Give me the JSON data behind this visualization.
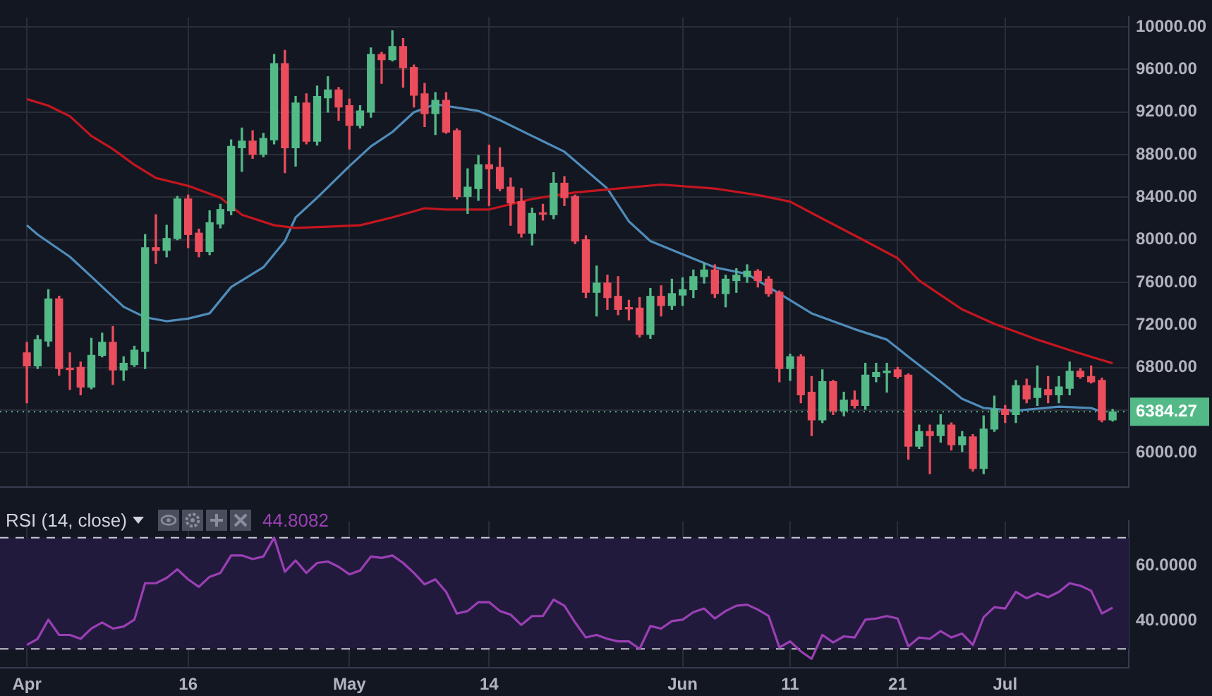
{
  "chart_data": [
    {
      "type": "candlestick",
      "x": [
        "--04-01",
        "--04-02",
        "--04-03",
        "--04-04",
        "--04-05",
        "--04-06",
        "--04-07",
        "--04-08",
        "--04-09",
        "--04-10",
        "--04-11",
        "--04-12",
        "--04-13",
        "--04-14",
        "--04-15",
        "--04-16",
        "--04-17",
        "--04-18",
        "--04-19",
        "--04-20",
        "--04-21",
        "--04-22",
        "--04-23",
        "--04-24",
        "--04-25",
        "--04-26",
        "--04-27",
        "--04-28",
        "--04-29",
        "--04-30",
        "--05-01",
        "--05-02",
        "--05-03",
        "--05-04",
        "--05-05",
        "--05-06",
        "--05-07",
        "--05-08",
        "--05-09",
        "--05-10",
        "--05-11",
        "--05-12",
        "--05-13",
        "--05-14",
        "--05-15",
        "--05-16",
        "--05-17",
        "--05-18",
        "--05-19",
        "--05-20",
        "--05-21",
        "--05-22",
        "--05-23",
        "--05-24",
        "--05-25",
        "--05-26",
        "--05-27",
        "--05-28",
        "--05-29",
        "--05-30",
        "--05-31",
        "--06-01",
        "--06-02",
        "--06-03",
        "--06-04",
        "--06-05",
        "--06-06",
        "--06-07",
        "--06-08",
        "--06-09",
        "--06-10",
        "--06-11",
        "--06-12",
        "--06-13",
        "--06-14",
        "--06-15",
        "--06-16",
        "--06-17",
        "--06-18",
        "--06-19",
        "--06-20",
        "--06-21",
        "--06-22",
        "--06-23",
        "--06-24",
        "--06-25",
        "--06-26",
        "--06-27",
        "--06-28",
        "--06-29",
        "--06-30",
        "--07-01",
        "--07-02",
        "--07-03",
        "--07-04",
        "--07-05",
        "--07-06",
        "--07-07",
        "--07-08",
        "--07-09",
        "--07-10",
        "--07-11"
      ],
      "ohlc": [
        [
          6938,
          7037,
          6469,
          6815
        ],
        [
          6815,
          7100,
          6790,
          7062
        ],
        [
          7049,
          7531,
          7000,
          7444
        ],
        [
          7444,
          7470,
          6728,
          6790
        ],
        [
          6790,
          6938,
          6593,
          6780
        ],
        [
          6802,
          6852,
          6543,
          6617
        ],
        [
          6617,
          7074,
          6600,
          6914
        ],
        [
          6914,
          7123,
          6900,
          7037
        ],
        [
          7037,
          7185,
          6642,
          6778
        ],
        [
          6778,
          6901,
          6679,
          6840
        ],
        [
          6827,
          7000,
          6810,
          6963
        ],
        [
          6951,
          8049,
          6790,
          7926
        ],
        [
          7926,
          8235,
          7778,
          7900
        ],
        [
          7901,
          8136,
          7840,
          8012
        ],
        [
          8012,
          8407,
          8000,
          8383
        ],
        [
          8383,
          8420,
          7926,
          8049
        ],
        [
          8062,
          8100,
          7840,
          7889
        ],
        [
          7889,
          8272,
          7860,
          8160
        ],
        [
          8148,
          8333,
          8111,
          8284
        ],
        [
          8272,
          8938,
          8235,
          8877
        ],
        [
          8864,
          9049,
          8642,
          8926
        ],
        [
          8926,
          9025,
          8765,
          8802
        ],
        [
          8802,
          9000,
          8780,
          8951
        ],
        [
          8938,
          9741,
          8900,
          9654
        ],
        [
          9654,
          9778,
          8630,
          8864
        ],
        [
          8864,
          9346,
          8691,
          9284
        ],
        [
          9284,
          9370,
          8900,
          8926
        ],
        [
          8926,
          9444,
          8889,
          9346
        ],
        [
          9333,
          9531,
          9198,
          9407
        ],
        [
          9407,
          9430,
          9123,
          9247
        ],
        [
          9259,
          9321,
          8852,
          9074
        ],
        [
          9074,
          9259,
          9050,
          9210
        ],
        [
          9198,
          9802,
          9150,
          9741
        ],
        [
          9741,
          9760,
          9469,
          9691
        ],
        [
          9691,
          9963,
          9680,
          9815
        ],
        [
          9815,
          9889,
          9432,
          9617
        ],
        [
          9617,
          9640,
          9247,
          9358
        ],
        [
          9370,
          9469,
          9062,
          9185
        ],
        [
          9185,
          9383,
          8988,
          9309
        ],
        [
          9309,
          9383,
          9000,
          9012
        ],
        [
          9025,
          9040,
          8383,
          8407
        ],
        [
          8407,
          8667,
          8247,
          8494
        ],
        [
          8481,
          8790,
          8370,
          8704
        ],
        [
          8704,
          8889,
          8321,
          8667
        ],
        [
          8679,
          8864,
          8460,
          8481
        ],
        [
          8494,
          8580,
          8136,
          8346
        ],
        [
          8358,
          8481,
          8025,
          8062
        ],
        [
          8062,
          8296,
          7951,
          8247
        ],
        [
          8247,
          8333,
          8185,
          8240
        ],
        [
          8235,
          8630,
          8198,
          8531
        ],
        [
          8531,
          8593,
          8321,
          8395
        ],
        [
          8407,
          8420,
          7963,
          7988
        ],
        [
          8000,
          8037,
          7457,
          7506
        ],
        [
          7506,
          7753,
          7284,
          7593
        ],
        [
          7593,
          7667,
          7346,
          7457
        ],
        [
          7469,
          7654,
          7296,
          7346
        ],
        [
          7358,
          7432,
          7247,
          7350
        ],
        [
          7358,
          7457,
          7086,
          7111
        ],
        [
          7111,
          7543,
          7074,
          7469
        ],
        [
          7469,
          7568,
          7284,
          7383
        ],
        [
          7383,
          7630,
          7346,
          7494
        ],
        [
          7481,
          7642,
          7383,
          7531
        ],
        [
          7531,
          7716,
          7457,
          7654
        ],
        [
          7654,
          7778,
          7593,
          7716
        ],
        [
          7716,
          7765,
          7457,
          7494
        ],
        [
          7494,
          7667,
          7370,
          7630
        ],
        [
          7617,
          7728,
          7506,
          7667
        ],
        [
          7654,
          7765,
          7600,
          7704
        ],
        [
          7704,
          7720,
          7556,
          7617
        ],
        [
          7630,
          7654,
          7469,
          7494
        ],
        [
          7506,
          7520,
          6667,
          6790
        ],
        [
          6790,
          6926,
          6679,
          6901
        ],
        [
          6901,
          6920,
          6469,
          6543
        ],
        [
          6568,
          6716,
          6160,
          6309
        ],
        [
          6309,
          6778,
          6284,
          6667
        ],
        [
          6667,
          6679,
          6358,
          6395
        ],
        [
          6395,
          6568,
          6346,
          6494
        ],
        [
          6494,
          6580,
          6420,
          6444
        ],
        [
          6444,
          6840,
          6407,
          6728
        ],
        [
          6716,
          6840,
          6667,
          6753
        ],
        [
          6753,
          6840,
          6568,
          6765
        ],
        [
          6778,
          6802,
          6700,
          6716
        ],
        [
          6728,
          6740,
          5938,
          6062
        ],
        [
          6062,
          6259,
          6040,
          6198
        ],
        [
          6198,
          6259,
          5802,
          6160
        ],
        [
          6160,
          6358,
          6099,
          6259
        ],
        [
          6259,
          6280,
          6025,
          6074
        ],
        [
          6074,
          6198,
          6012,
          6148
        ],
        [
          6148,
          6170,
          5827,
          5852
        ],
        [
          5852,
          6346,
          5802,
          6222
        ],
        [
          6222,
          6531,
          6200,
          6407
        ],
        [
          6407,
          6444,
          6284,
          6358
        ],
        [
          6358,
          6679,
          6284,
          6630
        ],
        [
          6630,
          6691,
          6469,
          6506
        ],
        [
          6519,
          6815,
          6444,
          6605
        ],
        [
          6593,
          6716,
          6469,
          6543
        ],
        [
          6543,
          6716,
          6469,
          6617
        ],
        [
          6605,
          6852,
          6543,
          6765
        ],
        [
          6765,
          6790,
          6700,
          6716
        ],
        [
          6716,
          6815,
          6654,
          6667
        ],
        [
          6679,
          6700,
          6290,
          6309
        ],
        [
          6309,
          6407,
          6296,
          6384.27
        ]
      ],
      "colors": [
        "#eb4d5c",
        "#53b987",
        "#53b987",
        "#eb4d5c",
        "#eb4d5c",
        "#eb4d5c",
        "#53b987",
        "#53b987",
        "#eb4d5c",
        "#53b987",
        "#53b987",
        "#53b987",
        "#eb4d5c",
        "#53b987",
        "#53b987",
        "#eb4d5c",
        "#eb4d5c",
        "#53b987",
        "#53b987",
        "#53b987",
        "#53b987",
        "#eb4d5c",
        "#53b987",
        "#53b987",
        "#eb4d5c",
        "#53b987",
        "#eb4d5c",
        "#53b987",
        "#53b987",
        "#eb4d5c",
        "#eb4d5c",
        "#53b987",
        "#53b987",
        "#eb4d5c",
        "#53b987",
        "#eb4d5c",
        "#eb4d5c",
        "#eb4d5c",
        "#53b987",
        "#eb4d5c",
        "#eb4d5c",
        "#53b987",
        "#53b987",
        "#eb4d5c",
        "#eb4d5c",
        "#eb4d5c",
        "#eb4d5c",
        "#53b987",
        "#eb4d5c",
        "#53b987",
        "#eb4d5c",
        "#eb4d5c",
        "#eb4d5c",
        "#53b987",
        "#eb4d5c",
        "#eb4d5c",
        "#eb4d5c",
        "#eb4d5c",
        "#53b987",
        "#eb4d5c",
        "#53b987",
        "#53b987",
        "#53b987",
        "#53b987",
        "#eb4d5c",
        "#53b987",
        "#53b987",
        "#53b987",
        "#eb4d5c",
        "#eb4d5c",
        "#eb4d5c",
        "#53b987",
        "#eb4d5c",
        "#eb4d5c",
        "#53b987",
        "#eb4d5c",
        "#53b987",
        "#eb4d5c",
        "#53b987",
        "#53b987",
        "#53b987",
        "#eb4d5c",
        "#eb4d5c",
        "#53b987",
        "#eb4d5c",
        "#53b987",
        "#eb4d5c",
        "#53b987",
        "#eb4d5c",
        "#53b987",
        "#53b987",
        "#eb4d5c",
        "#53b987",
        "#eb4d5c",
        "#53b987",
        "#eb4d5c",
        "#53b987",
        "#53b987",
        "#eb4d5c",
        "#eb4d5c",
        "#eb4d5c",
        "#53b987"
      ],
      "series": [
        {
          "type": "line",
          "color": "#c4161f",
          "x": [
            "--04-01",
            "--04-03",
            "--04-05",
            "--04-07",
            "--04-09",
            "--04-11",
            "--04-13",
            "--04-16",
            "--04-19",
            "--04-21",
            "--04-24",
            "--04-26",
            "--04-29",
            "--05-02",
            "--05-05",
            "--05-08",
            "--05-10",
            "--05-14",
            "--05-18",
            "--05-22",
            "--05-26",
            "--05-30",
            "--06-04",
            "--06-08",
            "--06-11",
            "--06-14",
            "--06-18",
            "--06-21",
            "--06-23",
            "--06-27",
            "--06-30",
            "--07-04",
            "--07-07",
            "--07-09",
            "--07-11"
          ],
          "values": [
            9321,
            9259,
            9160,
            8975,
            8852,
            8704,
            8580,
            8506,
            8395,
            8235,
            8136,
            8111,
            8123,
            8136,
            8210,
            8296,
            8284,
            8284,
            8383,
            8444,
            8481,
            8518,
            8481,
            8420,
            8358,
            8198,
            7988,
            7827,
            7617,
            7346,
            7210,
            7062,
            6963,
            6901,
            6840
          ]
        },
        {
          "type": "line",
          "color": "#4f8cba",
          "x": [
            "--04-01",
            "--04-02",
            "--04-05",
            "--04-07",
            "--04-10",
            "--04-12",
            "--04-14",
            "--04-16",
            "--04-18",
            "--04-20",
            "--04-23",
            "--04-25",
            "--04-26",
            "--04-28",
            "--05-01",
            "--05-03",
            "--05-05",
            "--05-07",
            "--05-09",
            "--05-13",
            "--05-15",
            "--05-18",
            "--05-21",
            "--05-25",
            "--05-27",
            "--05-29",
            "--06-01",
            "--06-04",
            "--06-07",
            "--06-09",
            "--06-13",
            "--06-17",
            "--06-20",
            "--06-22",
            "--06-25",
            "--06-27",
            "--06-29",
            "--07-02",
            "--07-06",
            "--07-09",
            "--07-10"
          ],
          "values": [
            8136,
            8049,
            7840,
            7654,
            7370,
            7272,
            7235,
            7259,
            7309,
            7556,
            7741,
            7988,
            8210,
            8395,
            8691,
            8877,
            9012,
            9198,
            9272,
            9210,
            9123,
            8975,
            8827,
            8481,
            8173,
            7988,
            7864,
            7741,
            7679,
            7556,
            7309,
            7160,
            7062,
            6901,
            6667,
            6506,
            6420,
            6395,
            6432,
            6420,
            6383
          ]
        }
      ],
      "xticks": [
        {
          "value": "--04-01",
          "label": null
        },
        {
          "value": "--04-16",
          "label": null
        },
        {
          "value": "--05-01",
          "label": null
        },
        {
          "value": "--05-14",
          "label": null
        },
        {
          "value": "--06-01",
          "label": null
        },
        {
          "value": "--06-11",
          "label": null
        },
        {
          "value": "--06-21",
          "label": null
        },
        {
          "value": "--07-01",
          "label": null
        }
      ],
      "ylim": [
        5680,
        10090
      ],
      "yticks": [
        {
          "value": 6000,
          "label": "6000.00"
        },
        {
          "value": 6400,
          "label": null
        },
        {
          "value": 6800,
          "label": "6800.00"
        },
        {
          "value": 7200,
          "label": "7200.00"
        },
        {
          "value": 7600,
          "label": "7600.00"
        },
        {
          "value": 8000,
          "label": "8000.00"
        },
        {
          "value": 8400,
          "label": "8400.00"
        },
        {
          "value": 8800,
          "label": "8800.00"
        },
        {
          "value": 9200,
          "label": "9200.00"
        },
        {
          "value": 9600,
          "label": "9600.00"
        },
        {
          "value": 10000,
          "label": "10000.00"
        }
      ],
      "xlim": [
        "--03-29T12:00",
        "--07-12T12:00"
      ],
      "ref_lines": [
        {
          "axis": "y",
          "value": 6384.27,
          "label": "6384.27",
          "color": "#53b987",
          "line_style": "dotted"
        }
      ],
      "grid": true,
      "tick_labels": "y",
      "marker": "none"
    },
    {
      "type": "line",
      "title": "RSI (14, close)",
      "annotations": [
        "44.8082"
      ],
      "x": [
        "--04-01",
        "--04-02",
        "--04-03",
        "--04-04",
        "--04-05",
        "--04-06",
        "--04-07",
        "--04-08",
        "--04-09",
        "--04-10",
        "--04-11",
        "--04-12",
        "--04-13",
        "--04-14",
        "--04-15",
        "--04-16",
        "--04-17",
        "--04-18",
        "--04-19",
        "--04-20",
        "--04-21",
        "--04-22",
        "--04-23",
        "--04-24",
        "--04-25",
        "--04-26",
        "--04-27",
        "--04-28",
        "--04-29",
        "--04-30",
        "--05-01",
        "--05-02",
        "--05-03",
        "--05-04",
        "--05-05",
        "--05-06",
        "--05-07",
        "--05-08",
        "--05-09",
        "--05-10",
        "--05-11",
        "--05-12",
        "--05-13",
        "--05-14",
        "--05-15",
        "--05-16",
        "--05-17",
        "--05-18",
        "--05-19",
        "--05-20",
        "--05-21",
        "--05-22",
        "--05-23",
        "--05-24",
        "--05-25",
        "--05-26",
        "--05-27",
        "--05-28",
        "--05-29",
        "--05-30",
        "--05-31",
        "--06-01",
        "--06-02",
        "--06-03",
        "--06-04",
        "--06-05",
        "--06-06",
        "--06-07",
        "--06-08",
        "--06-09",
        "--06-10",
        "--06-11",
        "--06-12",
        "--06-13",
        "--06-14",
        "--06-15",
        "--06-16",
        "--06-17",
        "--06-18",
        "--06-19",
        "--06-20",
        "--06-21",
        "--06-22",
        "--06-23",
        "--06-24",
        "--06-25",
        "--06-26",
        "--06-27",
        "--06-28",
        "--06-29",
        "--06-30",
        "--07-01",
        "--07-02",
        "--07-03",
        "--07-04",
        "--07-05",
        "--07-06",
        "--07-07",
        "--07-08",
        "--07-09",
        "--07-10",
        "--07-11"
      ],
      "series": [
        {
          "color": "#9b3fb5",
          "values": [
            31.4,
            33.6,
            40.5,
            35,
            35,
            33.6,
            37.3,
            39.5,
            37.3,
            38,
            40.5,
            53.6,
            53.6,
            55.5,
            58.6,
            55,
            52.3,
            55.9,
            57.3,
            63.6,
            63.6,
            62.3,
            63.2,
            70,
            57.7,
            61.8,
            57.3,
            60.9,
            61.4,
            59.5,
            56.8,
            58.2,
            63.2,
            62.7,
            63.6,
            60.9,
            57.3,
            53.2,
            55,
            50.5,
            42.7,
            43.6,
            46.8,
            46.8,
            43.6,
            42.3,
            38.6,
            41.8,
            41.8,
            47.7,
            45.5,
            39.5,
            34.1,
            35,
            33.6,
            32.7,
            32.7,
            30,
            38.2,
            37.3,
            40,
            40.5,
            43.2,
            44.5,
            40.9,
            43.6,
            45.5,
            45.9,
            44.1,
            41.8,
            30.5,
            32.7,
            29.1,
            26.4,
            35,
            32.3,
            34.5,
            34.1,
            40.5,
            40.9,
            41.8,
            40.9,
            30.9,
            34.1,
            33.6,
            36.4,
            34.1,
            35.5,
            31.4,
            41.4,
            45,
            44.5,
            50.5,
            48.2,
            50,
            48.6,
            50.5,
            53.6,
            52.7,
            50.9,
            42.7,
            44.8082
          ]
        }
      ],
      "xlim": [
        "--03-29T12:00",
        "--07-12T12:00"
      ],
      "xticks": [
        {
          "value": "--04-01",
          "label": "Apr"
        },
        {
          "value": "--04-16",
          "label": "16"
        },
        {
          "value": "--05-01",
          "label": "May"
        },
        {
          "value": "--05-14",
          "label": "14"
        },
        {
          "value": "--06-01",
          "label": "Jun"
        },
        {
          "value": "--06-11",
          "label": "11"
        },
        {
          "value": "--06-21",
          "label": "21"
        },
        {
          "value": "--07-01",
          "label": "Jul"
        }
      ],
      "ylim": [
        23.2,
        75.9
      ],
      "yticks": [
        {
          "value": 40,
          "label": "40.0000"
        },
        {
          "value": 60,
          "label": "60.0000"
        }
      ],
      "ref_lines": [
        {
          "axis": "y",
          "value": 70,
          "label": null,
          "color": "#c8c8d0",
          "line_style": "dashed"
        },
        {
          "axis": "y",
          "value": 30,
          "label": null,
          "color": "#c8c8d0",
          "line_style": "dashed"
        }
      ],
      "bands": [
        {
          "axis": "y",
          "from": 30,
          "to": 70,
          "label": null,
          "color": "#221a3c"
        }
      ],
      "grid": true,
      "marker": "none"
    }
  ]
}
